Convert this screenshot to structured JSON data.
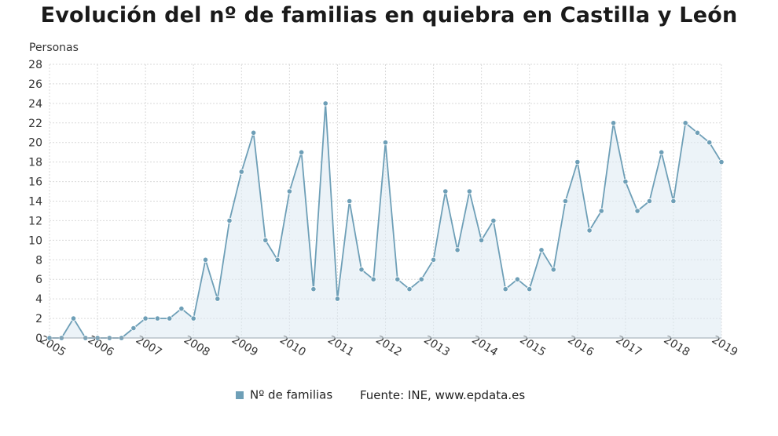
{
  "title": "Evolución del nº de familias en quiebra en Castilla y León",
  "legend_label": "Nº de familias",
  "source": "Fuente: INE, www.epdata.es",
  "colors": {
    "line": "#6e9fb7",
    "fill": "#dde9f3",
    "grid": "#d9d9d9"
  },
  "chart_data": {
    "type": "line",
    "title": "Evolución del nº de familias en quiebra en Castilla y León",
    "ylabel": "Personas",
    "ylim": [
      0,
      28
    ],
    "y_ticks": [
      0,
      2,
      4,
      6,
      8,
      10,
      12,
      14,
      16,
      18,
      20,
      22,
      24,
      26,
      28
    ],
    "x_ticks": [
      "2005",
      "2006",
      "2007",
      "2008",
      "2009",
      "2010",
      "2011",
      "2012",
      "2013",
      "2014",
      "2015",
      "2016",
      "2017",
      "2018",
      "2019"
    ],
    "grid": true,
    "series": [
      {
        "name": "Nº de familias",
        "x": [
          "2005-Q1",
          "2005-Q2",
          "2005-Q3",
          "2005-Q4",
          "2006-Q1",
          "2006-Q2",
          "2006-Q3",
          "2006-Q4",
          "2007-Q1",
          "2007-Q2",
          "2007-Q3",
          "2007-Q4",
          "2008-Q1",
          "2008-Q2",
          "2008-Q3",
          "2008-Q4",
          "2009-Q1",
          "2009-Q2",
          "2009-Q3",
          "2009-Q4",
          "2010-Q1",
          "2010-Q2",
          "2010-Q3",
          "2010-Q4",
          "2011-Q1",
          "2011-Q2",
          "2011-Q3",
          "2011-Q4",
          "2012-Q1",
          "2012-Q2",
          "2012-Q3",
          "2012-Q4",
          "2013-Q1",
          "2013-Q2",
          "2013-Q3",
          "2013-Q4",
          "2014-Q1",
          "2014-Q2",
          "2014-Q3",
          "2014-Q4",
          "2015-Q1",
          "2015-Q2",
          "2015-Q3",
          "2015-Q4",
          "2016-Q1",
          "2016-Q2",
          "2016-Q3",
          "2016-Q4",
          "2017-Q1",
          "2017-Q2",
          "2017-Q3",
          "2017-Q4",
          "2018-Q1",
          "2018-Q2",
          "2018-Q3",
          "2018-Q4",
          "2019-Q1"
        ],
        "values": [
          0,
          0,
          2,
          0,
          0,
          0,
          0,
          1,
          2,
          2,
          2,
          3,
          2,
          8,
          4,
          12,
          17,
          21,
          10,
          8,
          15,
          19,
          5,
          24,
          4,
          14,
          7,
          6,
          20,
          6,
          5,
          6,
          8,
          15,
          9,
          15,
          10,
          12,
          5,
          6,
          5,
          9,
          7,
          14,
          18,
          11,
          13,
          22,
          16,
          13,
          14,
          19,
          14,
          22,
          21,
          20,
          18
        ]
      }
    ]
  }
}
